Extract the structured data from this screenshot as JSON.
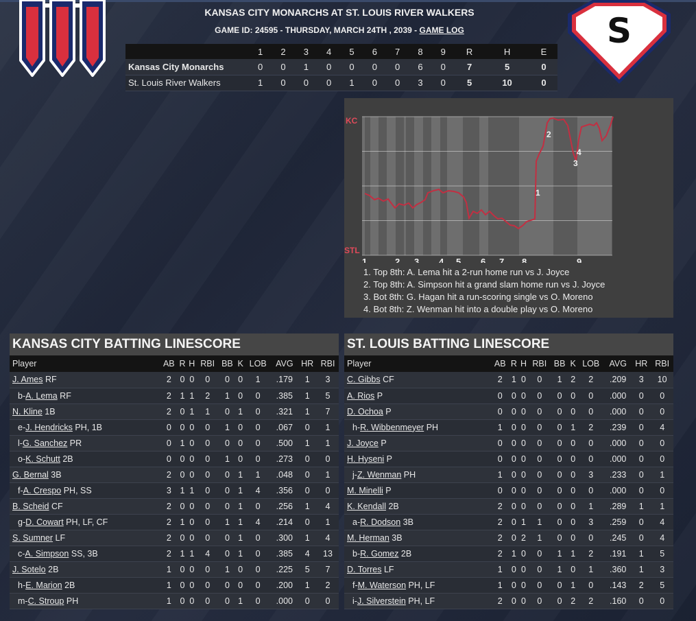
{
  "header": {
    "title": "KANSAS CITY MONARCHS AT ST. LOUIS RIVER WALKERS",
    "subtitle": "GAME ID: 24595 - THURSDAY, MARCH 24TH , 2039 - ",
    "game_log_link": "GAME LOG"
  },
  "logos": {
    "home_letter": "S",
    "away_icon": "monarchs-m-icon"
  },
  "colors": {
    "accent_red": "#d9303e",
    "accent_blue": "#1a2a6c",
    "wp_line": "#c22f42"
  },
  "linescore": {
    "headers": [
      "",
      "1",
      "2",
      "3",
      "4",
      "5",
      "6",
      "7",
      "8",
      "9",
      "R",
      "H",
      "E"
    ],
    "rows": [
      {
        "team": "Kansas City Monarchs",
        "cells": [
          "0",
          "0",
          "1",
          "0",
          "0",
          "0",
          "0",
          "6",
          "0",
          "7",
          "5",
          "0"
        ]
      },
      {
        "team": "St. Louis River Walkers",
        "cells": [
          "1",
          "0",
          "0",
          "0",
          "1",
          "0",
          "0",
          "3",
          "0",
          "5",
          "10",
          "0"
        ]
      }
    ]
  },
  "win_prob": {
    "top_label": "KC",
    "bottom_label": "STL",
    "innings": [
      "1",
      "2",
      "3",
      "4",
      "5",
      "6",
      "7",
      "8",
      "9"
    ],
    "markers": [
      "1",
      "2",
      "3",
      "4"
    ],
    "notes": [
      "1. Top 8th: A. Lema hit a 2-run home run vs J. Joyce",
      "2. Top 8th: A. Simpson hit a grand slam home run vs J. Joyce",
      "3. Bot 8th: G. Hagan hit a run-scoring single vs O. Moreno",
      "4. Bot 8th: Z. Wenman hit into a double play vs O. Moreno"
    ]
  },
  "batting_columns": [
    "Player",
    "AB",
    "R",
    "H",
    "RBI",
    "BB",
    "K",
    "LOB",
    "AVG",
    "HR",
    "RBI"
  ],
  "kc_batting": {
    "title": "KANSAS CITY BATTING LINESCORE",
    "rows": [
      {
        "prefix": "",
        "name": "J. Ames",
        "pos": " RF",
        "stats": [
          "2",
          "0",
          "0",
          "0",
          "0",
          "0",
          "1",
          ".179",
          "1",
          "3"
        ]
      },
      {
        "prefix": "b-",
        "name": "A. Lema",
        "pos": " RF",
        "stats": [
          "2",
          "1",
          "1",
          "2",
          "1",
          "0",
          "0",
          ".385",
          "1",
          "5"
        ]
      },
      {
        "prefix": "",
        "name": "N. Kline",
        "pos": " 1B",
        "stats": [
          "2",
          "0",
          "1",
          "1",
          "0",
          "1",
          "0",
          ".321",
          "1",
          "7"
        ]
      },
      {
        "prefix": "e-",
        "name": "J. Hendricks",
        "pos": " PH, 1B",
        "stats": [
          "0",
          "0",
          "0",
          "0",
          "1",
          "0",
          "0",
          ".067",
          "0",
          "1"
        ]
      },
      {
        "prefix": "l-",
        "name": "G. Sanchez",
        "pos": " PR",
        "stats": [
          "0",
          "1",
          "0",
          "0",
          "0",
          "0",
          "0",
          ".500",
          "1",
          "1"
        ]
      },
      {
        "prefix": "o-",
        "name": "K. Schutt",
        "pos": " 2B",
        "stats": [
          "0",
          "0",
          "0",
          "0",
          "1",
          "0",
          "0",
          ".273",
          "0",
          "0"
        ]
      },
      {
        "prefix": "",
        "name": "G. Bernal",
        "pos": " 3B",
        "stats": [
          "2",
          "0",
          "0",
          "0",
          "0",
          "1",
          "1",
          ".048",
          "0",
          "1"
        ]
      },
      {
        "prefix": "f-",
        "name": "A. Crespo",
        "pos": " PH, SS",
        "stats": [
          "3",
          "1",
          "1",
          "0",
          "0",
          "1",
          "4",
          ".356",
          "0",
          "0"
        ]
      },
      {
        "prefix": "",
        "name": "B. Scheid",
        "pos": " CF",
        "stats": [
          "2",
          "0",
          "0",
          "0",
          "0",
          "1",
          "0",
          ".256",
          "1",
          "4"
        ]
      },
      {
        "prefix": "g-",
        "name": "D. Cowart",
        "pos": " PH, LF, CF",
        "stats": [
          "2",
          "1",
          "0",
          "0",
          "1",
          "1",
          "4",
          ".214",
          "0",
          "1"
        ]
      },
      {
        "prefix": "",
        "name": "S. Sumner",
        "pos": " LF",
        "stats": [
          "2",
          "0",
          "0",
          "0",
          "0",
          "1",
          "0",
          ".300",
          "1",
          "4"
        ]
      },
      {
        "prefix": "c-",
        "name": "A. Simpson",
        "pos": " SS, 3B",
        "stats": [
          "2",
          "1",
          "1",
          "4",
          "0",
          "1",
          "0",
          ".385",
          "4",
          "13"
        ]
      },
      {
        "prefix": "",
        "name": "J. Sotelo",
        "pos": " 2B",
        "stats": [
          "1",
          "0",
          "0",
          "0",
          "1",
          "0",
          "0",
          ".225",
          "5",
          "7"
        ]
      },
      {
        "prefix": "h-",
        "name": "E. Marion",
        "pos": " 2B",
        "stats": [
          "1",
          "0",
          "0",
          "0",
          "0",
          "0",
          "0",
          ".200",
          "1",
          "2"
        ]
      },
      {
        "prefix": "m-",
        "name": "C. Stroup",
        "pos": " PH",
        "stats": [
          "1",
          "0",
          "0",
          "0",
          "0",
          "1",
          "0",
          ".000",
          "0",
          "0"
        ]
      }
    ]
  },
  "stl_batting": {
    "title": "ST. LOUIS BATTING LINESCORE",
    "rows": [
      {
        "prefix": "",
        "name": "C. Gibbs",
        "pos": " CF",
        "stats": [
          "2",
          "1",
          "0",
          "0",
          "1",
          "2",
          "2",
          ".209",
          "3",
          "10"
        ]
      },
      {
        "prefix": "",
        "name": "A. Rios",
        "pos": " P",
        "stats": [
          "0",
          "0",
          "0",
          "0",
          "0",
          "0",
          "0",
          ".000",
          "0",
          "0"
        ]
      },
      {
        "prefix": "",
        "name": "D. Ochoa",
        "pos": " P",
        "stats": [
          "0",
          "0",
          "0",
          "0",
          "0",
          "0",
          "0",
          ".000",
          "0",
          "0"
        ]
      },
      {
        "prefix": "h-",
        "name": "R. Wibbenmeyer",
        "pos": " PH",
        "stats": [
          "1",
          "0",
          "0",
          "0",
          "0",
          "1",
          "2",
          ".239",
          "0",
          "4"
        ]
      },
      {
        "prefix": "",
        "name": "J. Joyce",
        "pos": " P",
        "stats": [
          "0",
          "0",
          "0",
          "0",
          "0",
          "0",
          "0",
          ".000",
          "0",
          "0"
        ]
      },
      {
        "prefix": "",
        "name": "H. Hyseni",
        "pos": " P",
        "stats": [
          "0",
          "0",
          "0",
          "0",
          "0",
          "0",
          "0",
          ".000",
          "0",
          "0"
        ]
      },
      {
        "prefix": "j-",
        "name": "Z. Wenman",
        "pos": " PH",
        "stats": [
          "1",
          "0",
          "0",
          "0",
          "0",
          "0",
          "3",
          ".233",
          "0",
          "1"
        ]
      },
      {
        "prefix": "",
        "name": "M. Minelli",
        "pos": " P",
        "stats": [
          "0",
          "0",
          "0",
          "0",
          "0",
          "0",
          "0",
          ".000",
          "0",
          "0"
        ]
      },
      {
        "prefix": "",
        "name": "K. Kendall",
        "pos": " 2B",
        "stats": [
          "2",
          "0",
          "0",
          "0",
          "0",
          "0",
          "1",
          ".289",
          "1",
          "1"
        ]
      },
      {
        "prefix": "a-",
        "name": "R. Dodson",
        "pos": " 3B",
        "stats": [
          "2",
          "0",
          "1",
          "1",
          "0",
          "0",
          "3",
          ".259",
          "0",
          "4"
        ]
      },
      {
        "prefix": "",
        "name": "M. Herman",
        "pos": " 3B",
        "stats": [
          "2",
          "0",
          "2",
          "1",
          "0",
          "0",
          "0",
          ".245",
          "0",
          "4"
        ]
      },
      {
        "prefix": "b-",
        "name": "R. Gomez",
        "pos": " 2B",
        "stats": [
          "2",
          "1",
          "0",
          "0",
          "1",
          "1",
          "2",
          ".191",
          "1",
          "5"
        ]
      },
      {
        "prefix": "",
        "name": "D. Torres",
        "pos": " LF",
        "stats": [
          "1",
          "0",
          "0",
          "0",
          "1",
          "0",
          "1",
          ".360",
          "1",
          "3"
        ]
      },
      {
        "prefix": "f-",
        "name": "M. Waterson",
        "pos": " PH, LF",
        "stats": [
          "1",
          "0",
          "0",
          "0",
          "0",
          "1",
          "0",
          ".143",
          "2",
          "5"
        ]
      },
      {
        "prefix": "i-",
        "name": "J. Silverstein",
        "pos": " PH, LF",
        "stats": [
          "2",
          "0",
          "0",
          "0",
          "0",
          "2",
          "2",
          ".160",
          "0",
          "0"
        ]
      }
    ]
  }
}
